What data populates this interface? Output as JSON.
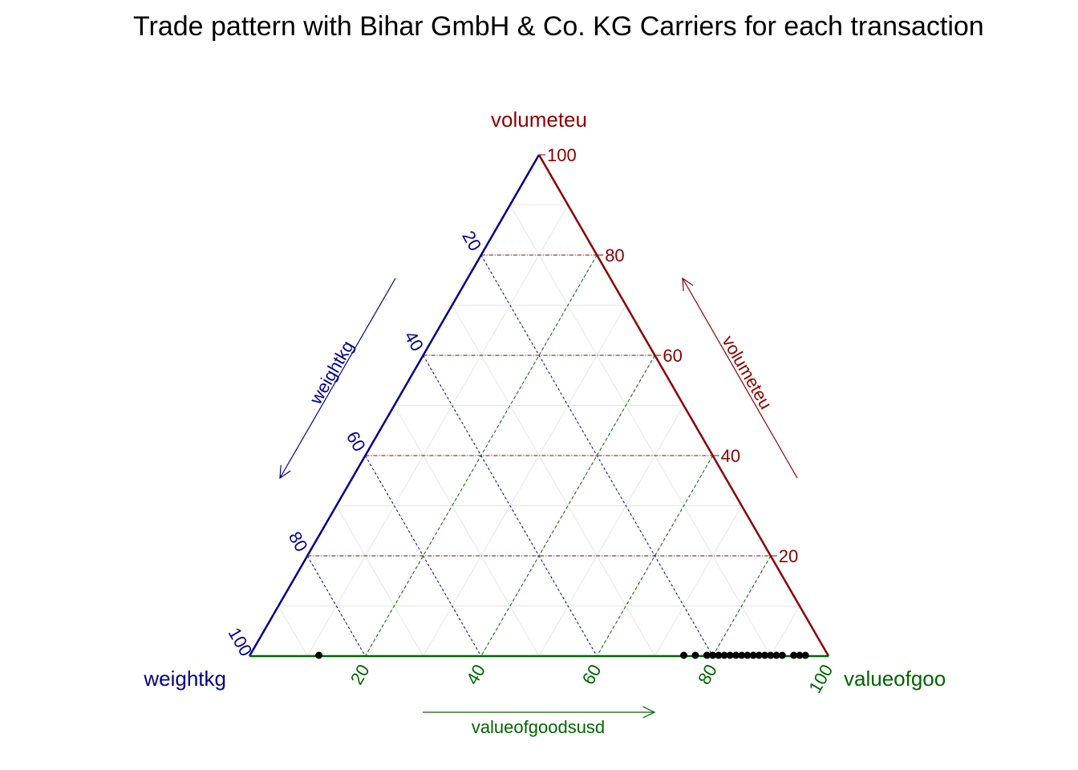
{
  "chart_data": {
    "type": "ternary",
    "title": "Trade pattern with Bihar GmbH & Co. KG Carriers for each transaction",
    "axes": {
      "top": {
        "label": "volumeteu",
        "arrow_label": "volumeteu",
        "color": "#8b0000"
      },
      "left": {
        "label": "weightkg",
        "arrow_label": "weightkg",
        "color": "#00008b"
      },
      "right": {
        "label": "valueofgoodsusd",
        "arrow_label": "valueofgoodsusd",
        "color": "#006400"
      }
    },
    "ticks": [
      "20",
      "40",
      "60",
      "80",
      "100"
    ],
    "grid": true,
    "points": [
      {
        "volumeteu": 0,
        "weightkg": 88,
        "valueofgoodsusd": 12
      },
      {
        "volumeteu": 0,
        "weightkg": 25,
        "valueofgoodsusd": 75
      },
      {
        "volumeteu": 0,
        "weightkg": 23,
        "valueofgoodsusd": 77
      },
      {
        "volumeteu": 0,
        "weightkg": 21,
        "valueofgoodsusd": 79
      },
      {
        "volumeteu": 0,
        "weightkg": 20,
        "valueofgoodsusd": 80
      },
      {
        "volumeteu": 0,
        "weightkg": 19,
        "valueofgoodsusd": 81
      },
      {
        "volumeteu": 0,
        "weightkg": 18,
        "valueofgoodsusd": 82
      },
      {
        "volumeteu": 0,
        "weightkg": 17,
        "valueofgoodsusd": 83
      },
      {
        "volumeteu": 0,
        "weightkg": 16,
        "valueofgoodsusd": 84
      },
      {
        "volumeteu": 0,
        "weightkg": 15,
        "valueofgoodsusd": 85
      },
      {
        "volumeteu": 0,
        "weightkg": 14,
        "valueofgoodsusd": 86
      },
      {
        "volumeteu": 0,
        "weightkg": 13,
        "valueofgoodsusd": 87
      },
      {
        "volumeteu": 0,
        "weightkg": 12,
        "valueofgoodsusd": 88
      },
      {
        "volumeteu": 0,
        "weightkg": 11,
        "valueofgoodsusd": 89
      },
      {
        "volumeteu": 0,
        "weightkg": 10,
        "valueofgoodsusd": 90
      },
      {
        "volumeteu": 0,
        "weightkg": 9,
        "valueofgoodsusd": 91
      },
      {
        "volumeteu": 0,
        "weightkg": 8,
        "valueofgoodsusd": 92
      },
      {
        "volumeteu": 0,
        "weightkg": 6,
        "valueofgoodsusd": 94
      },
      {
        "volumeteu": 0,
        "weightkg": 5,
        "valueofgoodsusd": 95
      },
      {
        "volumeteu": 0,
        "weightkg": 4,
        "valueofgoodsusd": 96
      }
    ]
  }
}
